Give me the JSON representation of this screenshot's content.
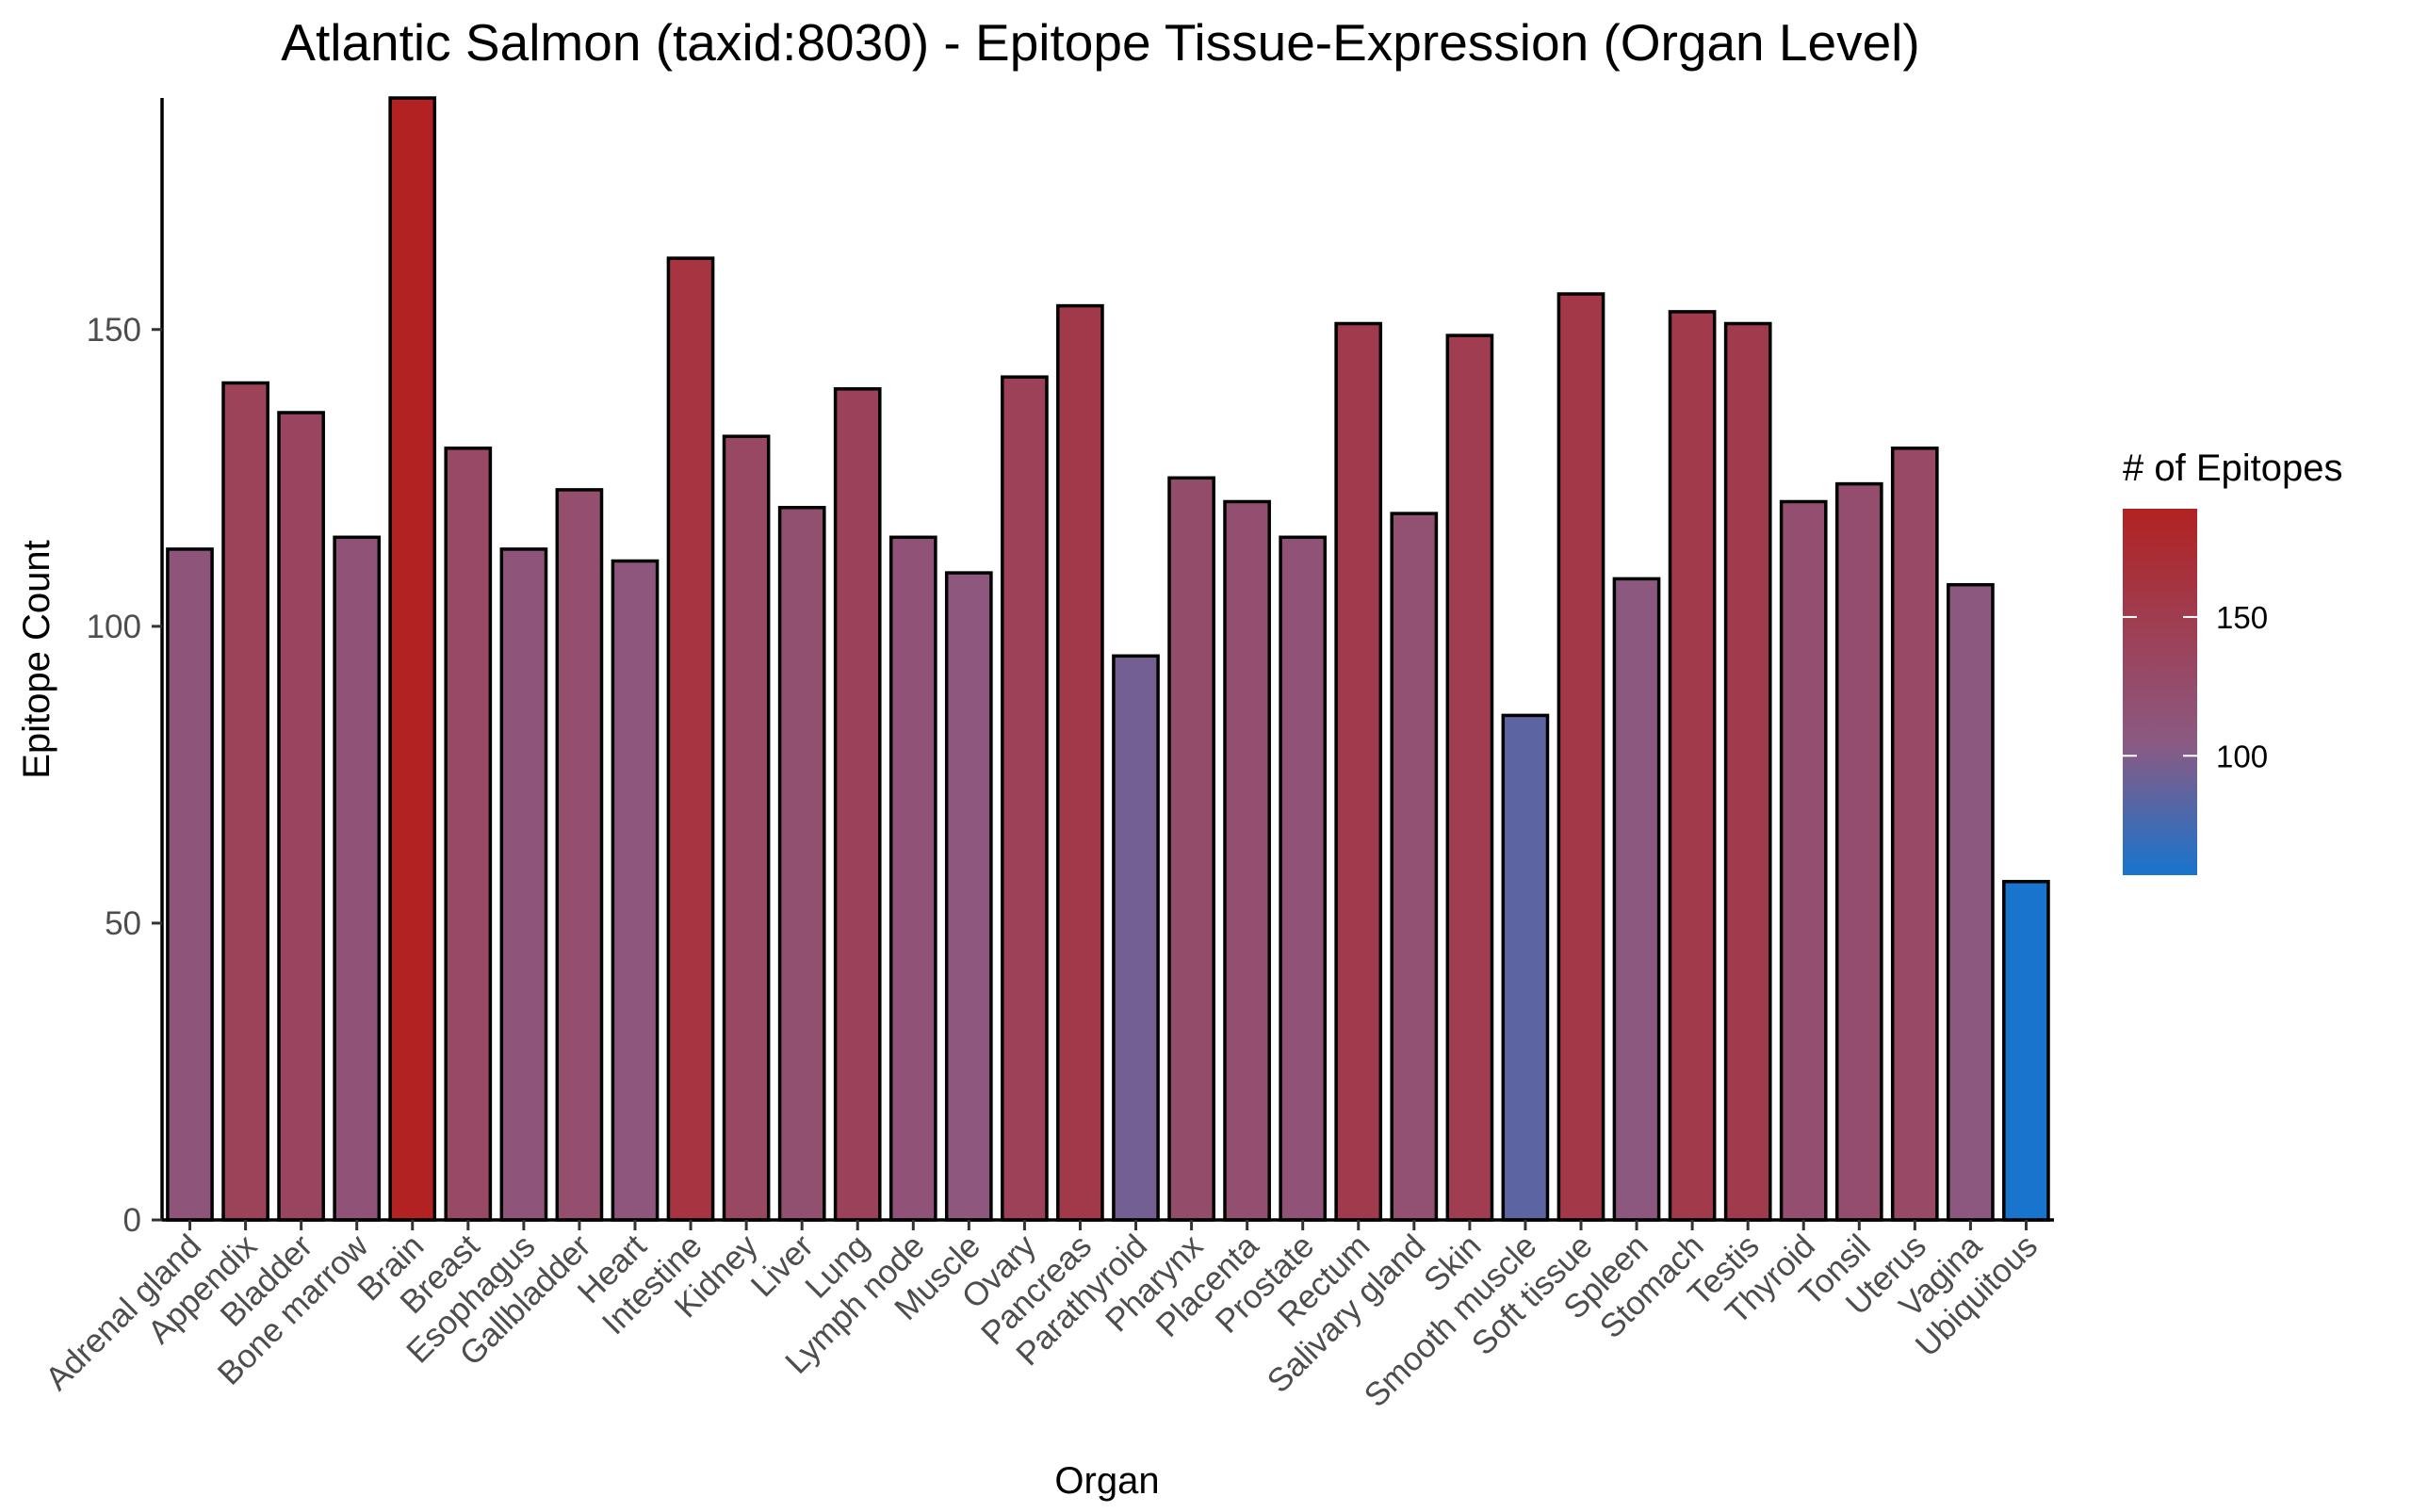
{
  "chart_data": {
    "type": "bar",
    "title": "Atlantic Salmon (taxid:8030) - Epitope Tissue-Expression (Organ Level)",
    "xlabel": "Organ",
    "ylabel": "Epitope Count",
    "categories": [
      "Adrenal gland",
      "Appendix",
      "Bladder",
      "Bone marrow",
      "Brain",
      "Breast",
      "Esophagus",
      "Gallbladder",
      "Heart",
      "Intestine",
      "Kidney",
      "Liver",
      "Lung",
      "Lymph node",
      "Muscle",
      "Ovary",
      "Pancreas",
      "Parathyroid",
      "Pharynx",
      "Placenta",
      "Prostate",
      "Rectum",
      "Salivary gland",
      "Skin",
      "Smooth muscle",
      "Soft tissue",
      "Spleen",
      "Stomach",
      "Testis",
      "Thyroid",
      "Tonsil",
      "Uterus",
      "Vagina",
      "Ubiquitous"
    ],
    "values": [
      113,
      141,
      136,
      115,
      189,
      130,
      113,
      123,
      111,
      162,
      132,
      120,
      140,
      115,
      109,
      142,
      154,
      95,
      125,
      121,
      115,
      151,
      119,
      149,
      85,
      156,
      108,
      153,
      151,
      121,
      124,
      130,
      107,
      57
    ],
    "ylim": [
      0,
      189
    ],
    "yticks": [
      0,
      50,
      100,
      150
    ],
    "grid": false,
    "legend": {
      "title": "# of Epitopes",
      "placement": "right",
      "ticks": [
        100,
        150
      ],
      "range": [
        57,
        189
      ],
      "low_color": "#1874CD",
      "mid_color": "#8B5A83",
      "high_color": "#B22222"
    }
  }
}
